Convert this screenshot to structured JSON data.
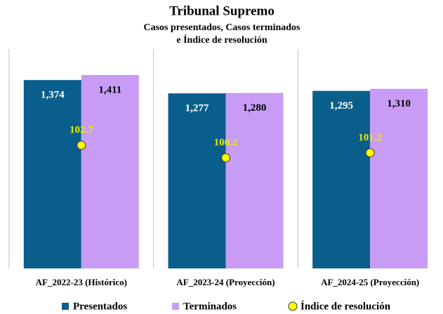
{
  "chart_data": {
    "type": "bar",
    "title": "Tribunal Supremo",
    "subtitle": [
      "Casos presentados, Casos terminados",
      "e Índice de resolución"
    ],
    "categories": [
      "AF_2022-23 (Histórico)",
      "AF_2023-24 (Proyección)",
      "AF_2024-25 (Proyección)"
    ],
    "series": [
      {
        "name": "Presentados",
        "color": "#0a5e8c",
        "values": [
          1374,
          1277,
          1295
        ],
        "value_labels": [
          "1,374",
          "1,277",
          "1,295"
        ]
      },
      {
        "name": "Terminados",
        "color": "#c89cf4",
        "values": [
          1411,
          1280,
          1310
        ],
        "value_labels": [
          "1,411",
          "1,280",
          "1,310"
        ]
      },
      {
        "name": "Índice de resolución",
        "type": "scatter",
        "color": "#ffff00",
        "axis": "y2",
        "values": [
          102.7,
          100.2,
          101.2
        ]
      }
    ],
    "ylim": [
      0,
      1600
    ],
    "y2lim": [
      78,
      122
    ]
  }
}
